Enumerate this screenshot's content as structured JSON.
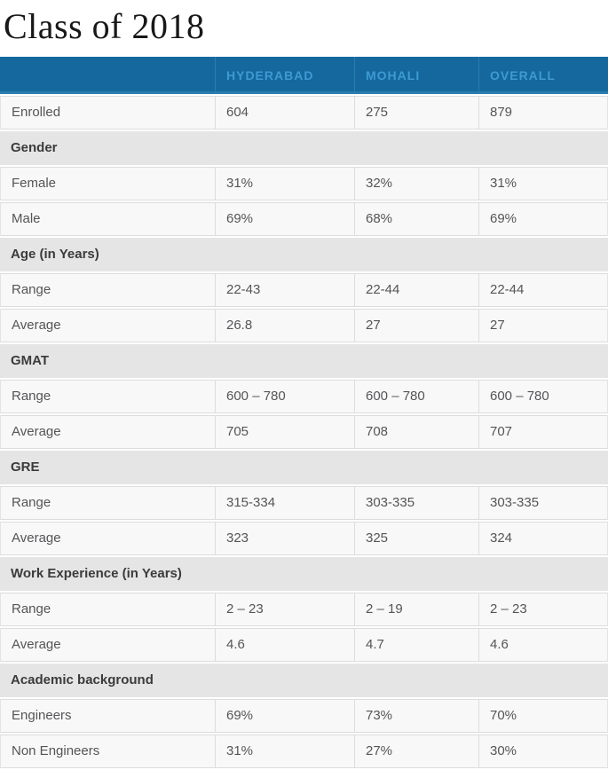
{
  "page": {
    "title": "Class of 2018"
  },
  "colors": {
    "header_background": "#14689e",
    "header_text": "#3e9ad2",
    "header_separator": "#2b7cae",
    "section_band_background": "#e5e5e5",
    "section_text": "#3b3b3b",
    "cell_background": "#f8f8f8",
    "cell_text": "#555558",
    "cell_border": "#dcdcdc",
    "title_text": "#181818"
  },
  "table": {
    "columns": [
      "HYDERABAD",
      "MOHALI",
      "OVERALL"
    ],
    "rows": [
      {
        "type": "data",
        "label": "Enrolled",
        "values": [
          "604",
          "275",
          "879"
        ]
      },
      {
        "type": "section",
        "label": "Gender"
      },
      {
        "type": "data",
        "label": "Female",
        "values": [
          "31%",
          "32%",
          "31%"
        ]
      },
      {
        "type": "data",
        "label": "Male",
        "values": [
          "69%",
          "68%",
          "69%"
        ]
      },
      {
        "type": "section",
        "label": "Age (in Years)"
      },
      {
        "type": "data",
        "label": "Range",
        "values": [
          "22-43",
          "22-44",
          "22-44"
        ]
      },
      {
        "type": "data",
        "label": "Average",
        "values": [
          "26.8",
          "27",
          "27"
        ]
      },
      {
        "type": "section",
        "label": "GMAT"
      },
      {
        "type": "data",
        "label": "Range",
        "values": [
          "600 – 780",
          "600 – 780",
          "600 – 780"
        ]
      },
      {
        "type": "data",
        "label": "Average",
        "values": [
          "705",
          "708",
          "707"
        ]
      },
      {
        "type": "section",
        "label": "GRE"
      },
      {
        "type": "data",
        "label": "Range",
        "values": [
          "315-334",
          "303-335",
          "303-335"
        ]
      },
      {
        "type": "data",
        "label": "Average",
        "values": [
          "323",
          "325",
          "324"
        ]
      },
      {
        "type": "section",
        "label": "Work Experience (in Years)"
      },
      {
        "type": "data",
        "label": "Range",
        "values": [
          "2 – 23",
          "2 – 19",
          "2 – 23"
        ]
      },
      {
        "type": "data",
        "label": "Average",
        "values": [
          "4.6",
          "4.7",
          "4.6"
        ]
      },
      {
        "type": "section",
        "label": "Academic background"
      },
      {
        "type": "data",
        "label": "Engineers",
        "values": [
          "69%",
          "73%",
          "70%"
        ]
      },
      {
        "type": "data",
        "label": "Non Engineers",
        "values": [
          "31%",
          "27%",
          "30%"
        ]
      }
    ]
  }
}
